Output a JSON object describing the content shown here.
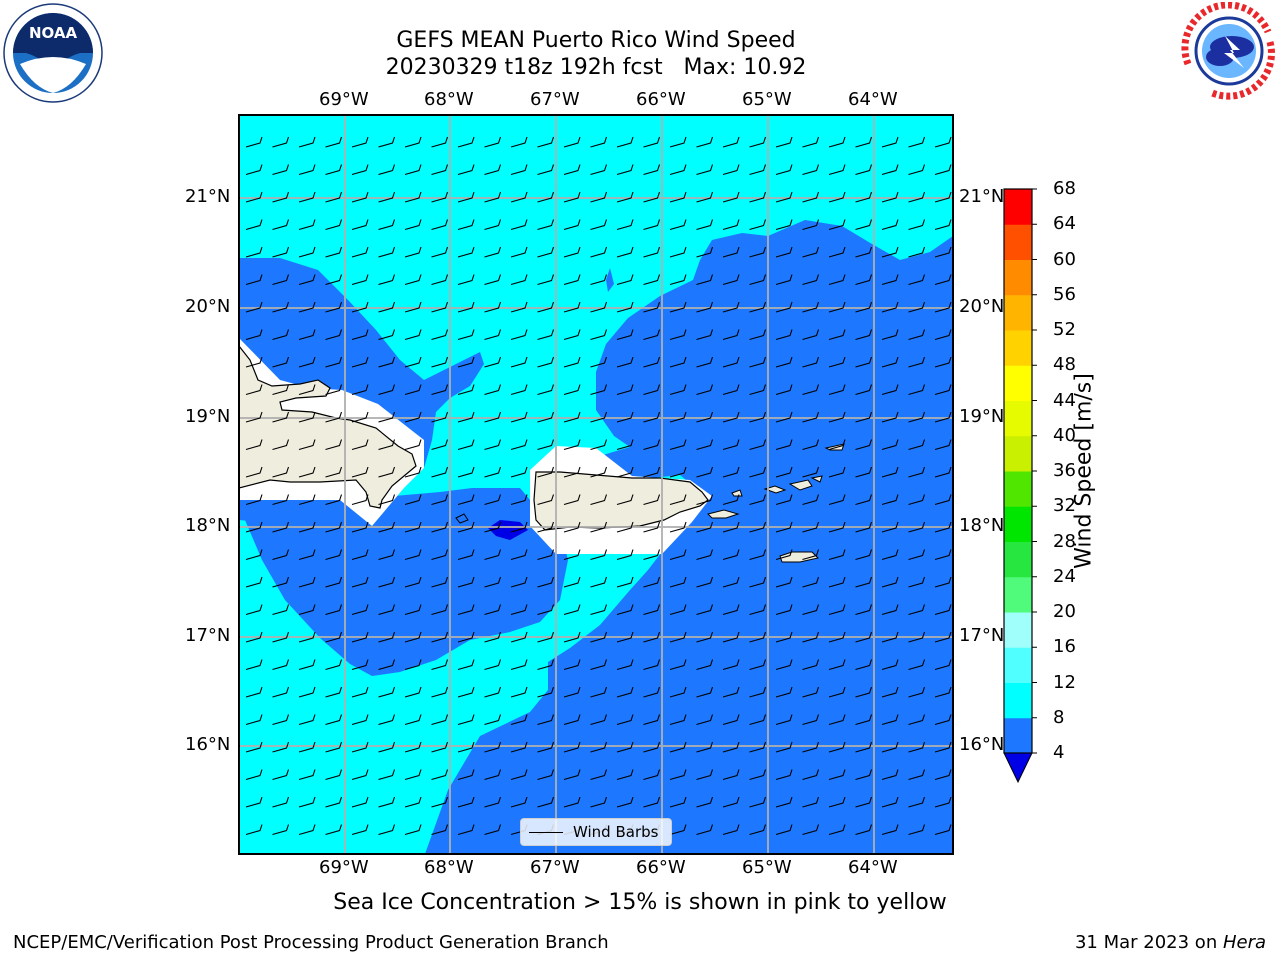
{
  "title": {
    "line1": "GEFS MEAN Puerto Rico Wind Speed",
    "line2": "20230329 t18z 192h fcst   Max: 10.92"
  },
  "logos": {
    "left": {
      "icon": "noaa-logo",
      "text": "NOAA"
    },
    "right": {
      "icon": "nws-logo",
      "text": "NATIONAL WEATHER SERVICE"
    }
  },
  "map": {
    "lon_ticks": [
      "69°W",
      "68°W",
      "67°W",
      "66°W",
      "65°W",
      "64°W"
    ],
    "lat_ticks": [
      "21°N",
      "20°N",
      "19°N",
      "18°N",
      "17°N",
      "16°N"
    ],
    "extent": {
      "lon": [
        -69.9,
        -63.2
      ],
      "lat": [
        15.0,
        21.75
      ]
    },
    "colors": {
      "land": "#efedde",
      "coast": "#000000",
      "grid": "#b0b0b0"
    }
  },
  "legend": {
    "label": "Wind Barbs"
  },
  "colorbar": {
    "label": "Wind Speed [m/s]",
    "ticks": [
      "68",
      "64",
      "60",
      "56",
      "52",
      "48",
      "44",
      "40",
      "36",
      "32",
      "28",
      "24",
      "20",
      "16",
      "12",
      "8",
      "4"
    ],
    "colors": [
      "#0000e6",
      "#1e78ff",
      "#00ffff",
      "#50ffff",
      "#9ffff8",
      "#50fa7b",
      "#28e640",
      "#00e600",
      "#50e600",
      "#a0e600",
      "#c8f000",
      "#e6fa00",
      "#ffff00",
      "#ffe100",
      "#ffb400",
      "#ff8c00",
      "#ff5000",
      "#ff2800",
      "#ff0000"
    ],
    "shown_bands_bottom_to_top": [
      {
        "from": 4,
        "to": 8,
        "color": "#1e78ff"
      },
      {
        "from": 8,
        "to": 12,
        "color": "#00ffff"
      },
      {
        "from": 12,
        "to": 16,
        "color": "#50ffff"
      },
      {
        "from": 16,
        "to": 20,
        "color": "#a0fffa"
      },
      {
        "from": 20,
        "to": 24,
        "color": "#50fa7b"
      },
      {
        "from": 24,
        "to": 28,
        "color": "#28e640"
      },
      {
        "from": 28,
        "to": 32,
        "color": "#00e600"
      },
      {
        "from": 32,
        "to": 36,
        "color": "#50e600"
      },
      {
        "from": 36,
        "to": 40,
        "color": "#c8f000"
      },
      {
        "from": 40,
        "to": 44,
        "color": "#e6fa00"
      },
      {
        "from": 44,
        "to": 48,
        "color": "#ffff00"
      },
      {
        "from": 48,
        "to": 52,
        "color": "#ffd200"
      },
      {
        "from": 52,
        "to": 56,
        "color": "#ffb400"
      },
      {
        "from": 56,
        "to": 60,
        "color": "#ff8c00"
      },
      {
        "from": 60,
        "to": 64,
        "color": "#ff5000"
      },
      {
        "from": 64,
        "to": 68,
        "color": "#ff0000"
      }
    ],
    "under_color": "#0000e6"
  },
  "caption": "Sea Ice Concentration > 15% is shown in pink to yellow",
  "footer": {
    "left": "NCEP/EMC/Verification Post Processing Product Generation Branch",
    "right_prefix": "31 Mar 2023 on ",
    "right_machine": "Hera"
  }
}
